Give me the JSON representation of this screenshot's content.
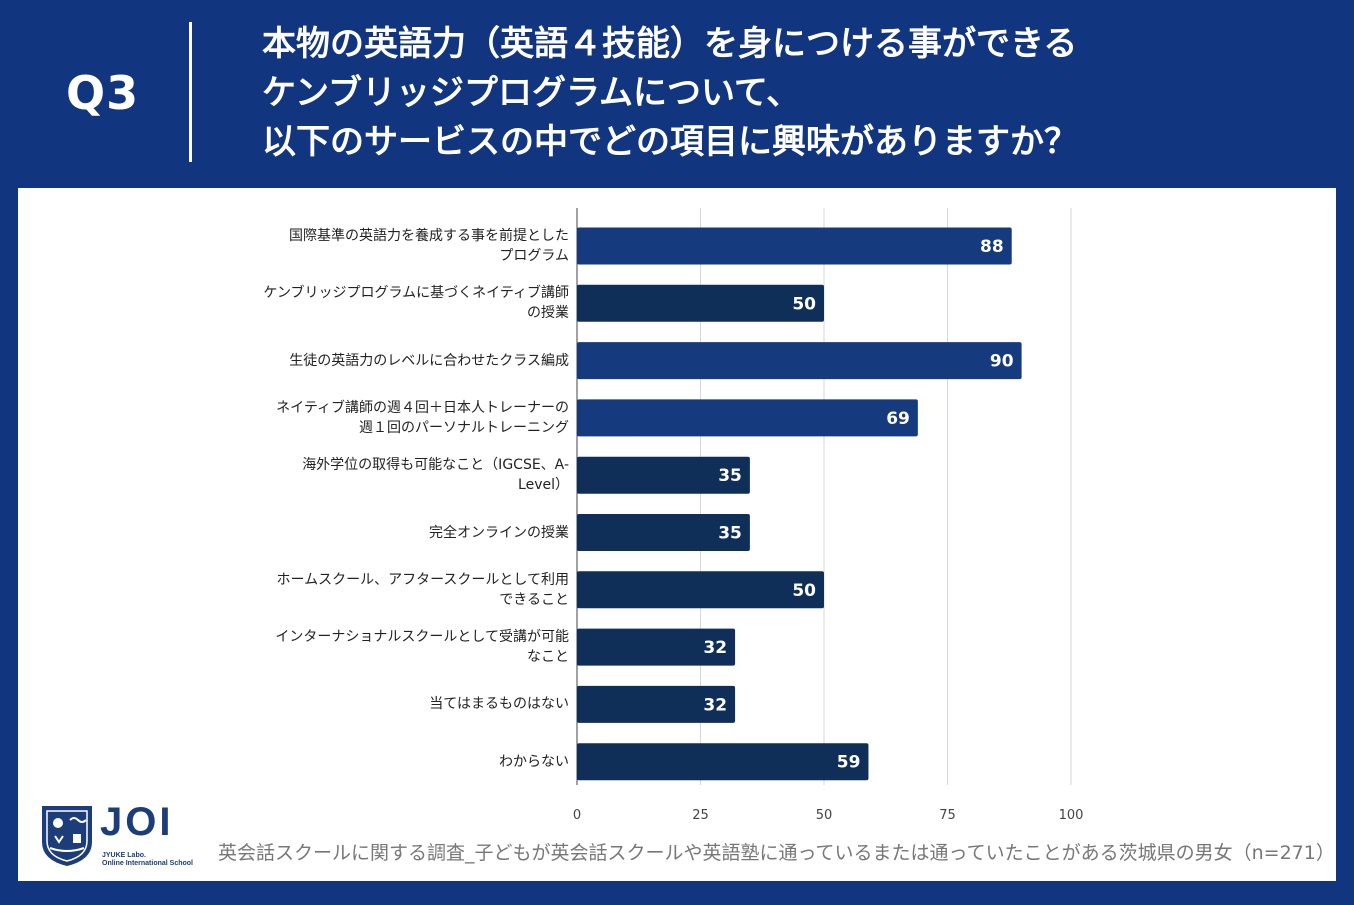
{
  "header": {
    "question_number": "Q3",
    "title_lines": [
      "本物の英語力（英語４技能）を身につける事ができる",
      "ケンブリッジプログラムについて、",
      "以下のサービスの中でどの項目に興味がありますか？"
    ]
  },
  "chart_data": {
    "type": "bar",
    "orientation": "horizontal",
    "title": "",
    "xlabel": "",
    "ylabel": "",
    "categories": [
      [
        "国際基準の英語力を養成する事を前提とした",
        "プログラム"
      ],
      [
        "ケンブリッジプログラムに基づくネイティブ講師",
        "の授業"
      ],
      [
        "生徒の英語力のレベルに合わせたクラス編成"
      ],
      [
        "ネイティブ講師の週４回＋日本人トレーナーの",
        "週１回のパーソナルトレーニング"
      ],
      [
        "海外学位の取得も可能なこと（IGCSE、A-",
        "Level）"
      ],
      [
        "完全オンラインの授業"
      ],
      [
        "ホームスクール、アフタースクールとして利用",
        "できること"
      ],
      [
        "インターナショナルスクールとして受講が可能",
        "なこと"
      ],
      [
        "当てはまるものはない"
      ],
      [
        "わからない"
      ]
    ],
    "values": [
      88,
      50,
      90,
      69,
      35,
      35,
      50,
      32,
      32,
      59
    ],
    "bar_colors": [
      "#163a7e",
      "#0f2f58",
      "#163a7e",
      "#163a7e",
      "#0f2f58",
      "#0f2f58",
      "#0f2f58",
      "#0f2f58",
      "#0f2f58",
      "#0f2f58"
    ],
    "xlim": [
      0,
      100
    ],
    "xticks": [
      0,
      25,
      50,
      75,
      100
    ],
    "grid": true,
    "data_labels": true
  },
  "footer": {
    "note": "英会話スクールに関する調査_子どもが英会話スクールや英語塾に通っているまたは通っていたことがある茨城県の男女（n=271）"
  },
  "logo": {
    "name": "JOI",
    "subtitle_lines": [
      "JYUKE Labo.",
      "Online International School"
    ],
    "color": "#1c3c7a"
  }
}
